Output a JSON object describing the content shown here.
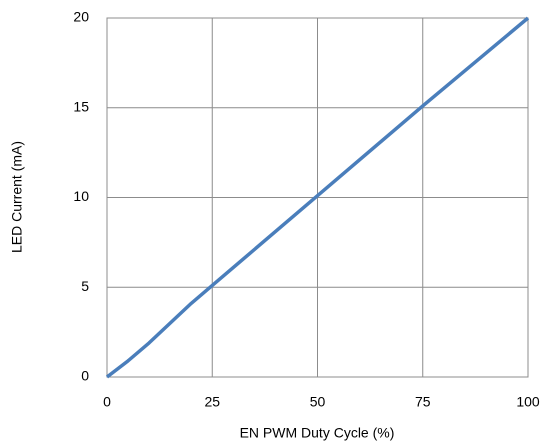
{
  "chart_data": {
    "type": "line",
    "xlabel": "EN PWM Duty Cycle (%)",
    "ylabel": "LED Current (mA)",
    "x": [
      0,
      5,
      10,
      15,
      20,
      25,
      50,
      75,
      100
    ],
    "series": [
      {
        "name": "LED Current",
        "color": "#4a7ebb",
        "values": [
          0,
          0.9,
          1.9,
          3.0,
          4.1,
          5.1,
          10.1,
          15.1,
          20
        ]
      }
    ],
    "xlim": [
      0,
      100
    ],
    "xticks": [
      0,
      25,
      50,
      75,
      100
    ],
    "ylim": [
      0,
      20
    ],
    "yticks": [
      0,
      5,
      10,
      15,
      20
    ],
    "grid": true
  }
}
